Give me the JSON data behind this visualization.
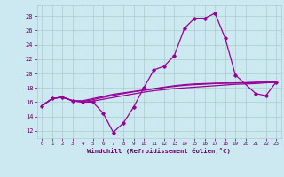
{
  "bg_color": "#cce8f0",
  "line_color": "#990099",
  "grid_color": "#aacccc",
  "xlabel": "Windchill (Refroidissement éolien,°C)",
  "xlabel_color": "#660066",
  "tick_color": "#660066",
  "xlim": [
    -0.5,
    23.5
  ],
  "ylim": [
    11.0,
    29.5
  ],
  "yticks": [
    12,
    14,
    16,
    18,
    20,
    22,
    24,
    26,
    28
  ],
  "xticks": [
    0,
    1,
    2,
    3,
    4,
    5,
    6,
    7,
    8,
    9,
    10,
    11,
    12,
    13,
    14,
    15,
    16,
    17,
    18,
    19,
    20,
    21,
    22,
    23
  ],
  "line1_x": [
    0,
    1,
    2,
    3,
    4,
    5,
    6,
    7,
    8,
    9,
    10,
    11,
    12,
    13,
    14,
    15,
    16,
    17,
    18,
    19,
    21,
    22,
    23
  ],
  "line1_y": [
    15.5,
    16.5,
    16.7,
    16.2,
    16.0,
    16.0,
    14.5,
    11.8,
    13.1,
    15.3,
    18.0,
    20.5,
    21.0,
    22.5,
    26.3,
    27.7,
    27.7,
    28.4,
    24.9,
    19.8,
    17.2,
    16.9,
    18.8
  ],
  "line2_x": [
    0,
    1,
    2,
    3,
    4,
    5,
    6,
    7,
    8,
    9,
    10,
    11,
    12,
    13,
    14,
    15,
    16,
    17,
    18,
    19,
    20,
    21,
    22,
    23
  ],
  "line2_y": [
    15.5,
    16.5,
    16.7,
    16.2,
    16.0,
    16.15,
    16.4,
    16.65,
    16.9,
    17.15,
    17.4,
    17.6,
    17.75,
    17.9,
    18.0,
    18.1,
    18.2,
    18.3,
    18.4,
    18.5,
    18.55,
    18.6,
    18.7,
    18.8
  ],
  "line3_x": [
    0,
    1,
    2,
    3,
    4,
    5,
    6,
    7,
    8,
    9,
    10,
    11,
    12,
    13,
    14,
    15,
    16,
    17,
    18,
    19,
    20,
    21,
    22,
    23
  ],
  "line3_y": [
    15.5,
    16.5,
    16.7,
    16.2,
    16.1,
    16.35,
    16.65,
    16.95,
    17.2,
    17.45,
    17.65,
    17.85,
    18.05,
    18.2,
    18.35,
    18.45,
    18.52,
    18.6,
    18.65,
    18.68,
    18.7,
    18.75,
    18.78,
    18.8
  ],
  "line4_x": [
    0,
    1,
    2,
    3,
    4,
    5,
    6,
    7,
    8,
    9,
    10,
    11,
    12,
    13,
    14,
    15,
    16,
    17,
    18,
    19,
    20,
    21,
    22,
    23
  ],
  "line4_y": [
    15.5,
    16.5,
    16.7,
    16.2,
    16.2,
    16.5,
    16.8,
    17.1,
    17.3,
    17.5,
    17.7,
    17.9,
    18.1,
    18.3,
    18.45,
    18.55,
    18.6,
    18.65,
    18.68,
    18.7,
    18.72,
    18.78,
    18.8,
    18.8
  ]
}
